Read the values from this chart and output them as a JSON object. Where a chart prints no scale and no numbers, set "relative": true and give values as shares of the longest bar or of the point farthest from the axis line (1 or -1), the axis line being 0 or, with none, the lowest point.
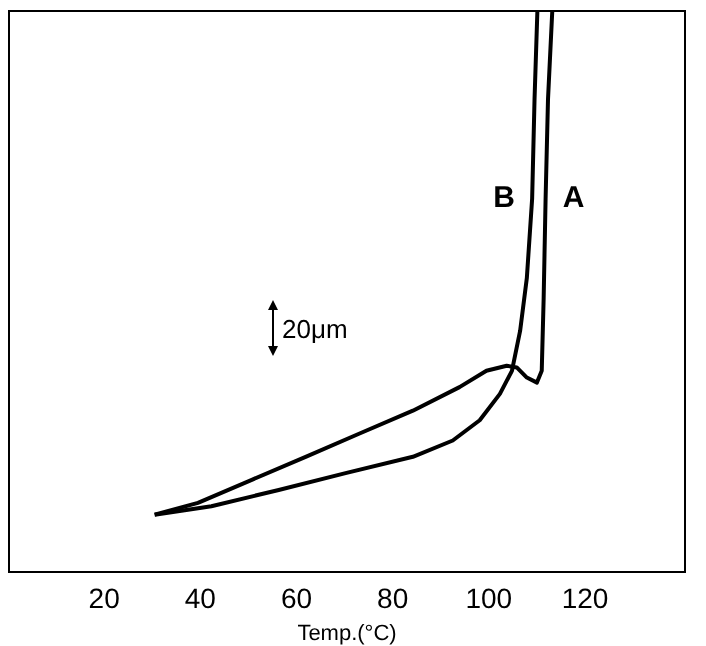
{
  "chart_data": {
    "type": "line",
    "xlabel": "Temp.(°C)",
    "relative": true,
    "xlim": [
      0,
      141
    ],
    "xticks": [
      20,
      40,
      60,
      80,
      100,
      120
    ],
    "grid": false,
    "legend": false,
    "line_style": "solid",
    "annotations": [
      "20μm"
    ],
    "series": [
      {
        "name": "A",
        "color": "#000000",
        "x": [
          30.5,
          39.5,
          50.7,
          61.9,
          73.0,
          84.2,
          93.9,
          99.5,
          103.7,
          105.8,
          107.9,
          110.0,
          111.0,
          111.4,
          111.8,
          112.3,
          113.2
        ],
        "values": [
          0.102,
          0.123,
          0.164,
          0.205,
          0.246,
          0.287,
          0.329,
          0.358,
          0.367,
          0.364,
          0.346,
          0.337,
          0.358,
          0.488,
          0.664,
          0.841,
          1
        ]
      },
      {
        "name": "B",
        "color": "#000000",
        "x": [
          30.5,
          42.3,
          56.3,
          70.2,
          84.2,
          92.5,
          98.1,
          102.3,
          104.8,
          106.5,
          107.9,
          109.0,
          109.5,
          110.1
        ],
        "values": [
          0.102,
          0.117,
          0.146,
          0.176,
          0.205,
          0.234,
          0.27,
          0.317,
          0.358,
          0.429,
          0.523,
          0.664,
          0.841,
          1
        ]
      }
    ]
  }
}
